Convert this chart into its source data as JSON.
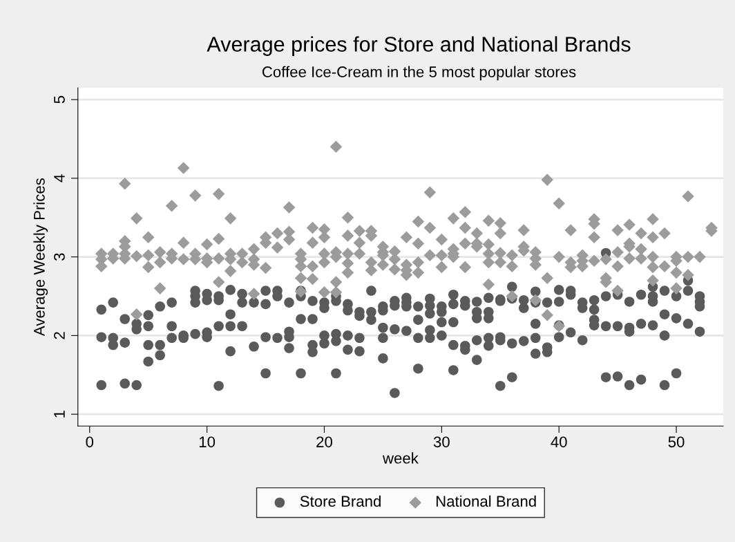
{
  "chart_data": {
    "type": "scatter",
    "title": "Average prices for Store and National Brands",
    "subtitle": "Coffee Ice-Cream in the 5 most popular stores",
    "xlabel": "week",
    "ylabel": "Average Weekly Prices",
    "xlim": [
      -1,
      54
    ],
    "xticks": [
      0,
      10,
      20,
      30,
      40,
      50
    ],
    "ylim": [
      0.85,
      5.15
    ],
    "yticks": [
      1,
      2,
      3,
      4,
      5
    ],
    "grid": "y",
    "legend": "bottom",
    "series": [
      {
        "name": "Store Brand",
        "color": "#5a5a5a",
        "marker": "circle",
        "x": [
          1,
          1,
          1,
          2,
          2,
          2,
          3,
          3,
          3,
          4,
          4,
          4,
          5,
          5,
          5,
          5,
          6,
          6,
          6,
          7,
          7,
          7,
          8,
          8,
          9,
          9,
          9,
          9,
          10,
          10,
          10,
          10,
          11,
          11,
          11,
          11,
          12,
          12,
          12,
          12,
          13,
          13,
          13,
          14,
          14,
          15,
          15,
          15,
          15,
          16,
          16,
          16,
          17,
          17,
          17,
          17,
          18,
          18,
          18,
          18,
          19,
          19,
          19,
          19,
          20,
          20,
          20,
          20,
          21,
          21,
          21,
          21,
          21,
          22,
          22,
          22,
          22,
          23,
          23,
          23,
          23,
          24,
          24,
          24,
          25,
          25,
          25,
          25,
          25,
          26,
          26,
          26,
          26,
          27,
          27,
          27,
          27,
          28,
          28,
          28,
          28,
          29,
          29,
          29,
          29,
          29,
          30,
          30,
          30,
          30,
          31,
          31,
          31,
          31,
          31,
          32,
          32,
          32,
          32,
          33,
          33,
          33,
          33,
          33,
          34,
          34,
          34,
          34,
          34,
          35,
          35,
          35,
          35,
          35,
          36,
          36,
          36,
          36,
          37,
          37,
          37,
          38,
          38,
          38,
          38,
          38,
          39,
          39,
          39,
          40,
          40,
          40,
          40,
          41,
          41,
          41,
          42,
          42,
          42,
          43,
          43,
          43,
          43,
          44,
          44,
          44,
          44,
          45,
          45,
          45,
          46,
          46,
          46,
          46,
          47,
          47,
          47,
          48,
          48,
          48,
          48,
          49,
          49,
          49,
          49,
          50,
          50,
          50,
          51,
          51,
          51,
          52,
          52,
          52,
          52
        ],
        "values": [
          2.33,
          1.98,
          1.37,
          2.42,
          1.97,
          1.88,
          2.21,
          1.91,
          1.39,
          2.15,
          2.08,
          1.37,
          2.26,
          2.12,
          1.88,
          1.67,
          2.37,
          1.88,
          1.75,
          2.42,
          2.12,
          1.97,
          2.0,
          1.97,
          2.57,
          2.5,
          2.42,
          2.02,
          2.53,
          2.45,
          2.04,
          1.98,
          2.5,
          2.45,
          2.12,
          1.36,
          2.58,
          2.27,
          2.12,
          1.8,
          2.53,
          2.42,
          2.12,
          2.42,
          1.86,
          2.57,
          2.4,
          1.98,
          1.52,
          2.57,
          2.5,
          1.97,
          2.42,
          2.05,
          1.98,
          1.84,
          2.57,
          2.5,
          2.21,
          1.52,
          2.44,
          2.21,
          1.88,
          1.79,
          2.42,
          2.35,
          2.0,
          1.9,
          2.5,
          2.44,
          2.02,
          1.93,
          1.52,
          2.4,
          2.32,
          2.0,
          1.82,
          2.3,
          2.25,
          1.97,
          1.8,
          2.57,
          2.3,
          2.2,
          2.37,
          2.32,
          2.1,
          1.97,
          1.71,
          2.44,
          2.38,
          2.08,
          1.27,
          2.48,
          2.42,
          2.37,
          2.06,
          2.37,
          2.2,
          1.97,
          1.58,
          2.47,
          2.38,
          2.28,
          2.07,
          1.97,
          2.37,
          2.3,
          2.17,
          2.0,
          2.52,
          2.4,
          2.17,
          1.88,
          1.56,
          2.44,
          2.38,
          1.87,
          1.82,
          2.43,
          2.3,
          2.22,
          1.94,
          1.69,
          2.48,
          2.3,
          2.22,
          1.97,
          1.87,
          2.46,
          2.44,
          1.98,
          1.94,
          1.36,
          2.62,
          2.47,
          1.9,
          1.47,
          2.45,
          2.35,
          1.93,
          2.56,
          2.42,
          2.15,
          1.97,
          1.77,
          2.42,
          1.85,
          1.79,
          2.58,
          2.43,
          2.13,
          1.98,
          2.57,
          2.52,
          2.04,
          2.42,
          2.35,
          1.94,
          2.45,
          2.33,
          2.2,
          2.13,
          3.05,
          2.5,
          2.12,
          1.47,
          2.52,
          2.12,
          1.48,
          2.43,
          2.1,
          2.05,
          1.37,
          2.52,
          2.15,
          1.44,
          2.62,
          2.5,
          2.43,
          2.13,
          2.57,
          2.27,
          2.0,
          1.37,
          2.5,
          2.22,
          1.52,
          2.7,
          2.57,
          2.15,
          2.5,
          2.43,
          2.37,
          2.05
        ]
      },
      {
        "name": "National Brand",
        "color": "#9c9c9c",
        "marker": "diamond",
        "x": [
          1,
          1,
          1,
          2,
          2,
          3,
          3,
          3,
          3,
          3,
          4,
          4,
          4,
          5,
          5,
          5,
          6,
          6,
          6,
          7,
          7,
          7,
          8,
          8,
          8,
          9,
          9,
          9,
          10,
          10,
          10,
          11,
          11,
          11,
          11,
          12,
          12,
          12,
          12,
          13,
          13,
          14,
          14,
          14,
          14,
          15,
          15,
          15,
          16,
          16,
          17,
          17,
          17,
          18,
          18,
          18,
          18,
          18,
          19,
          19,
          19,
          19,
          20,
          20,
          20,
          20,
          20,
          21,
          21,
          21,
          21,
          21,
          22,
          22,
          22,
          22,
          22,
          23,
          23,
          23,
          24,
          24,
          24,
          24,
          25,
          25,
          25,
          25,
          26,
          26,
          26,
          27,
          27,
          27,
          27,
          28,
          28,
          28,
          28,
          29,
          29,
          29,
          30,
          30,
          30,
          31,
          31,
          31,
          31,
          32,
          32,
          32,
          32,
          33,
          33,
          33,
          34,
          34,
          34,
          34,
          34,
          35,
          35,
          35,
          35,
          36,
          36,
          36,
          37,
          37,
          37,
          38,
          38,
          38,
          38,
          39,
          39,
          39,
          40,
          40,
          40,
          41,
          41,
          41,
          42,
          42,
          42,
          43,
          43,
          43,
          43,
          44,
          44,
          44,
          45,
          45,
          45,
          45,
          46,
          46,
          46,
          46,
          47,
          47,
          47,
          48,
          48,
          48,
          48,
          48,
          49,
          49,
          50,
          50,
          50,
          50,
          51,
          51,
          51,
          52,
          53,
          53
        ],
        "values": [
          3.04,
          2.97,
          2.88,
          3.04,
          2.98,
          3.93,
          3.2,
          3.13,
          3.04,
          2.98,
          3.49,
          3.01,
          2.27,
          3.25,
          3.02,
          2.87,
          3.06,
          2.93,
          2.6,
          3.65,
          3.04,
          2.98,
          4.13,
          3.18,
          2.97,
          3.78,
          3.04,
          2.97,
          3.16,
          2.98,
          2.93,
          3.8,
          3.23,
          2.98,
          2.68,
          3.49,
          3.04,
          2.97,
          2.82,
          3.04,
          2.93,
          3.1,
          2.97,
          2.9,
          2.53,
          3.25,
          3.18,
          2.86,
          3.3,
          3.12,
          3.63,
          3.32,
          3.22,
          3.04,
          2.97,
          2.88,
          2.73,
          2.56,
          3.37,
          3.18,
          2.88,
          2.72,
          3.35,
          3.25,
          3.04,
          2.93,
          2.55,
          4.4,
          3.06,
          3.0,
          2.68,
          2.55,
          3.5,
          3.27,
          3.04,
          2.92,
          2.8,
          3.33,
          3.18,
          3.04,
          3.33,
          3.27,
          2.93,
          2.83,
          3.13,
          3.06,
          3.02,
          2.9,
          3.07,
          2.97,
          2.84,
          3.25,
          2.9,
          2.83,
          2.77,
          3.45,
          3.17,
          2.93,
          2.8,
          3.82,
          3.37,
          3.02,
          3.22,
          3.02,
          2.87,
          3.49,
          3.1,
          3.04,
          3.0,
          3.57,
          3.37,
          3.17,
          2.87,
          3.3,
          3.17,
          3.13,
          3.46,
          3.16,
          3.04,
          2.93,
          2.65,
          3.43,
          3.3,
          3.05,
          2.93,
          3.02,
          2.88,
          2.5,
          3.34,
          3.13,
          3.08,
          3.06,
          2.98,
          2.9,
          2.45,
          3.98,
          2.73,
          2.26,
          3.68,
          3.0,
          2.12,
          3.34,
          2.93,
          2.87,
          3.02,
          2.95,
          2.88,
          3.48,
          3.42,
          3.25,
          2.95,
          2.97,
          2.73,
          2.68,
          3.34,
          3.06,
          2.88,
          2.57,
          3.41,
          3.17,
          3.13,
          2.98,
          3.3,
          3.1,
          2.98,
          3.48,
          3.25,
          3.0,
          2.87,
          2.7,
          3.3,
          2.88,
          3.0,
          2.95,
          2.8,
          2.6,
          3.77,
          3.0,
          2.77,
          3.0,
          3.37,
          3.33
        ]
      }
    ]
  }
}
